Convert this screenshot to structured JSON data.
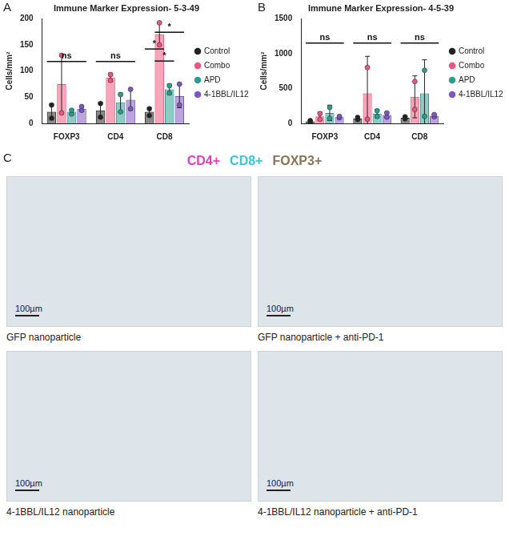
{
  "chart_data": [
    {
      "type": "bar",
      "panel_label": "A",
      "title": "Immune Marker Expression- 5-3-49",
      "y_label": "Cells/mm²",
      "categories": [
        "FOXP3",
        "CD4",
        "CD8"
      ],
      "series": [
        {
          "name": "Control",
          "color": "#222222",
          "values": [
            22,
            25,
            22
          ],
          "errors": [
            15,
            15,
            8
          ],
          "points": [
            [
              10,
              35
            ],
            [
              12,
              38
            ],
            [
              15,
              28
            ]
          ]
        },
        {
          "name": "Combo",
          "color": "#f2547d",
          "values": [
            75,
            88,
            170
          ],
          "errors": [
            55,
            8,
            22
          ],
          "points": [
            [
              20,
              130
            ],
            [
              82,
              93
            ],
            [
              150,
              192
            ]
          ]
        },
        {
          "name": "APD",
          "color": "#2a9d8f",
          "values": [
            22,
            40,
            65
          ],
          "errors": [
            5,
            18,
            10
          ],
          "points": [
            [
              18,
              25
            ],
            [
              22,
              55
            ],
            [
              58,
              72
            ]
          ]
        },
        {
          "name": "4-1BBL/IL12",
          "color": "#7e57c2",
          "values": [
            28,
            45,
            52
          ],
          "errors": [
            5,
            20,
            22
          ],
          "points": [
            [
              25,
              32
            ],
            [
              28,
              65
            ],
            [
              35,
              75
            ]
          ]
        }
      ],
      "ylim": [
        0,
        200
      ],
      "yticks": [
        0,
        50,
        100,
        150,
        200
      ],
      "grid": false,
      "legend": "right",
      "annotations": [
        {
          "text": "ns",
          "category": "FOXP3",
          "from": "Control",
          "to": "4-1BBL/IL12",
          "y": 118
        },
        {
          "text": "ns",
          "category": "CD4",
          "from": "Control",
          "to": "4-1BBL/IL12",
          "y": 118
        },
        {
          "text": "*",
          "category": "CD8",
          "from": "Control",
          "to": "Combo",
          "y": 142
        },
        {
          "text": "*",
          "category": "CD8",
          "from": "Combo",
          "to": "APD",
          "y": 119
        },
        {
          "text": "*",
          "category": "CD8",
          "from": "Combo",
          "to": "4-1BBL/IL12",
          "y": 174
        }
      ]
    },
    {
      "type": "bar",
      "panel_label": "B",
      "title": "Immune Marker Expression- 4-5-39",
      "y_label": "Cells/mm²",
      "categories": [
        "FOXP3",
        "CD4",
        "CD8"
      ],
      "series": [
        {
          "name": "Control",
          "color": "#222222",
          "values": [
            30,
            70,
            80
          ],
          "errors": [
            15,
            20,
            20
          ],
          "points": [
            [
              20,
              40
            ],
            [
              55,
              85
            ],
            [
              65,
              95
            ]
          ]
        },
        {
          "name": "Combo",
          "color": "#f2547d",
          "values": [
            100,
            430,
            380
          ],
          "errors": [
            60,
            530,
            300
          ],
          "points": [
            [
              60,
              140
            ],
            [
              60,
              800
            ],
            [
              200,
              600
            ]
          ]
        },
        {
          "name": "APD",
          "color": "#2a9d8f",
          "values": [
            150,
            140,
            430
          ],
          "errors": [
            110,
            60,
            480
          ],
          "points": [
            [
              70,
              230
            ],
            [
              100,
              180
            ],
            [
              100,
              760
            ]
          ]
        },
        {
          "name": "4-1BBL/IL12",
          "color": "#7e57c2",
          "values": [
            90,
            120,
            110
          ],
          "errors": [
            20,
            40,
            20
          ],
          "points": [
            [
              80,
              100
            ],
            [
              90,
              150
            ],
            [
              95,
              125
            ]
          ]
        }
      ],
      "ylim": [
        0,
        1500
      ],
      "yticks": [
        0,
        500,
        1000,
        1500
      ],
      "grid": false,
      "legend": "right",
      "annotations": [
        {
          "text": "ns",
          "category": "FOXP3",
          "from": "Control",
          "to": "4-1BBL/IL12",
          "y": 1150
        },
        {
          "text": "ns",
          "category": "CD4",
          "from": "Control",
          "to": "4-1BBL/IL12",
          "y": 1150
        },
        {
          "text": "ns",
          "category": "CD8",
          "from": "Control",
          "to": "4-1BBL/IL12",
          "y": 1150
        }
      ]
    }
  ],
  "panel_c": {
    "panel_label": "C",
    "stain_legend": [
      {
        "text": "CD4+",
        "color": "#e040c0"
      },
      {
        "text": "CD8+",
        "color": "#3fc4d4"
      },
      {
        "text": "FOXP3+",
        "color": "#8b7355"
      }
    ],
    "images": [
      {
        "caption": "GFP nanoparticle",
        "scale_bar": "100µm"
      },
      {
        "caption": "GFP nanoparticle + anti-PD-1",
        "scale_bar": "100µm"
      },
      {
        "caption": "4-1BBL/IL12 nanoparticle",
        "scale_bar": "100µm"
      },
      {
        "caption": "4-1BBL/IL12 nanoparticle + anti-PD-1",
        "scale_bar": "100µm"
      }
    ]
  }
}
